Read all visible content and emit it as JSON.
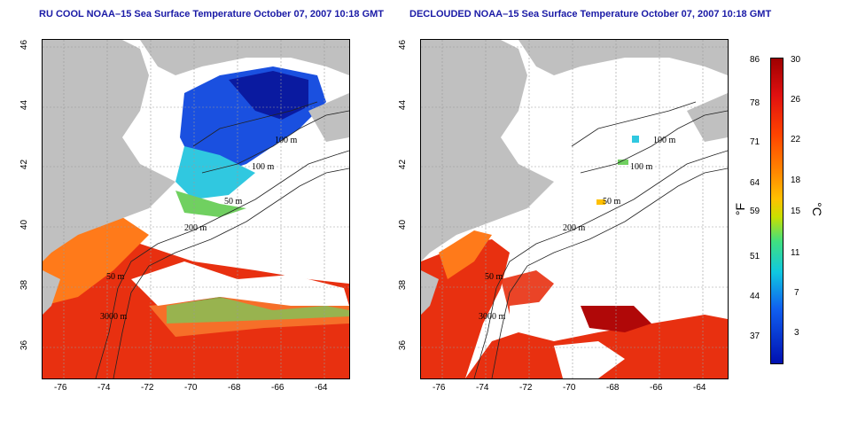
{
  "panels": [
    {
      "id": "left",
      "title": "RU COOL NOAA–15 Sea Surface Temperature October 07, 2007 10:18 GMT",
      "x_ticks": [
        "-76",
        "-74",
        "-72",
        "-70",
        "-68",
        "-66",
        "-64"
      ],
      "y_ticks": [
        "46",
        "44",
        "42",
        "40",
        "38",
        "36"
      ],
      "contour_labels": [
        "100 m",
        "100 m",
        "50 m",
        "200 m",
        "50 m",
        "3000 m"
      ]
    },
    {
      "id": "right",
      "title": "DECLOUDED NOAA–15 Sea Surface Temperature October 07, 2007 10:18 GMT",
      "x_ticks": [
        "-76",
        "-74",
        "-72",
        "-70",
        "-68",
        "-66",
        "-64"
      ],
      "y_ticks": [
        "46",
        "44",
        "42",
        "40",
        "38",
        "36"
      ],
      "contour_labels": [
        "100 m",
        "100 m",
        "50 m",
        "200 m",
        "50 m",
        "3000 m"
      ]
    }
  ],
  "colorbar": {
    "fahrenheit_ticks": [
      "86",
      "78",
      "71",
      "64",
      "59",
      "51",
      "44",
      "37"
    ],
    "celsius_ticks": [
      "30",
      "26",
      "22",
      "18",
      "15",
      "11",
      "7",
      "3"
    ],
    "unit_f": "°F",
    "unit_c": "°C",
    "colors": [
      "#9e0000",
      "#e01010",
      "#ff4400",
      "#ff8c00",
      "#ffc000",
      "#c8e000",
      "#40e080",
      "#10c8e0",
      "#1060f0",
      "#0010b0"
    ]
  },
  "map_colors": {
    "land": "#c0c0c0",
    "cloud": "#ffffff",
    "warm": "#e83010",
    "orange": "#ff7a1a",
    "cool_blue": "#1a50e0",
    "deep_blue": "#0a1aa0",
    "cyan": "#30c8e0",
    "green": "#70d060"
  }
}
